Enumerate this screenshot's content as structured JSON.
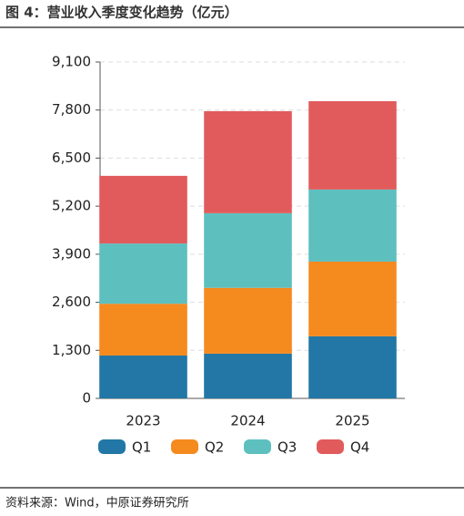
{
  "chart_data": {
    "type": "stacked-bar",
    "title": "图 4：营业收入季度变化趋势（亿元）",
    "source": "资料来源：Wind，中原证券研究所",
    "categories": [
      "2023",
      "2024",
      "2025"
    ],
    "series": [
      {
        "name": "Q1",
        "color": "#2277a6",
        "values": [
          1160,
          1210,
          1680
        ]
      },
      {
        "name": "Q2",
        "color": "#f58a1f",
        "values": [
          1400,
          1780,
          2020
        ]
      },
      {
        "name": "Q3",
        "color": "#5ebfbf",
        "values": [
          1630,
          2020,
          1950
        ]
      },
      {
        "name": "Q4",
        "color": "#e15b5d",
        "values": [
          1830,
          2760,
          2390
        ]
      }
    ],
    "ylim": [
      0,
      9100
    ],
    "yticks": [
      0,
      {
        "value": 1300,
        "label": "1,300"
      },
      {
        "value": 2600,
        "label": "2,600"
      },
      {
        "value": 3900,
        "label": "3,900"
      },
      {
        "value": 5200,
        "label": "5,200"
      },
      {
        "value": 6500,
        "label": "6,500"
      },
      {
        "value": 7800,
        "label": "7,800"
      },
      {
        "value": 9100,
        "label": "9,100"
      }
    ],
    "grid": true
  }
}
